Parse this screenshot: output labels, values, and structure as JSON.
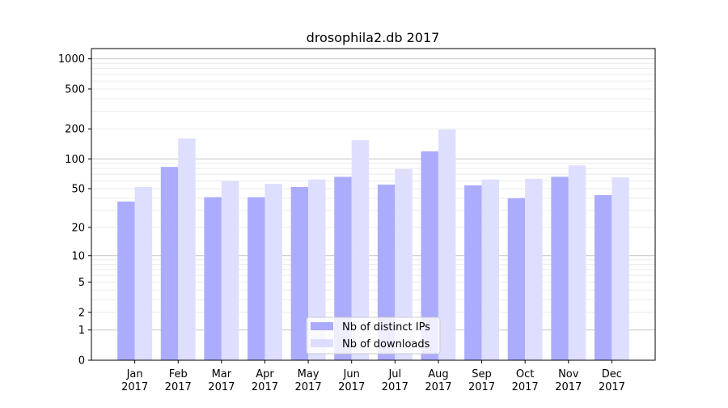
{
  "chart_data": {
    "type": "bar",
    "title": "drosophila2.db 2017",
    "xlabel": "",
    "ylabel": "",
    "yscale": "log(1+x)",
    "ylim": [
      0,
      1200
    ],
    "yticks": [
      0,
      1,
      2,
      5,
      10,
      20,
      50,
      100,
      200,
      500,
      1000
    ],
    "grid": true,
    "legend_position": "lower-center",
    "categories": [
      [
        "Jan",
        "2017"
      ],
      [
        "Feb",
        "2017"
      ],
      [
        "Mar",
        "2017"
      ],
      [
        "Apr",
        "2017"
      ],
      [
        "May",
        "2017"
      ],
      [
        "Jun",
        "2017"
      ],
      [
        "Jul",
        "2017"
      ],
      [
        "Aug",
        "2017"
      ],
      [
        "Sep",
        "2017"
      ],
      [
        "Oct",
        "2017"
      ],
      [
        "Nov",
        "2017"
      ],
      [
        "Dec",
        "2017"
      ]
    ],
    "series": [
      {
        "name": "Nb of distinct IPs",
        "color": "#aaaaff",
        "values": [
          37,
          83,
          41,
          41,
          52,
          66,
          55,
          119,
          54,
          40,
          66,
          43
        ]
      },
      {
        "name": "Nb of downloads",
        "color": "#ddddff",
        "values": [
          52,
          160,
          60,
          56,
          62,
          154,
          79,
          197,
          62,
          63,
          86,
          65
        ]
      }
    ]
  }
}
